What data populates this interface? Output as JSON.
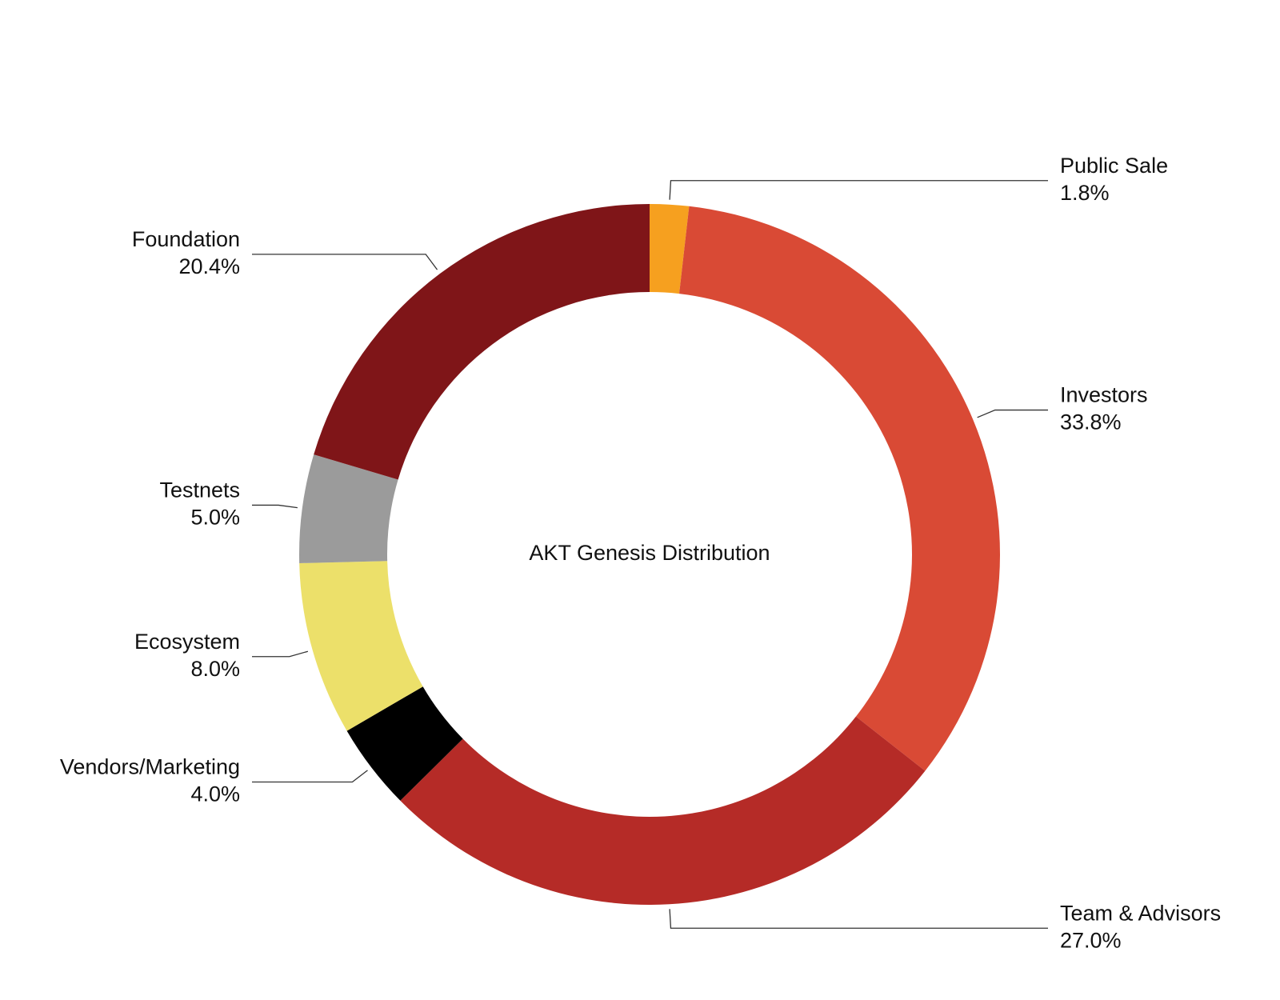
{
  "chart_data": {
    "type": "pie",
    "title": "AKT Genesis Distribution",
    "donut": true,
    "categories": [
      "Public Sale",
      "Investors",
      "Team & Advisors",
      "Vendors/Marketing",
      "Ecosystem",
      "Testnets",
      "Foundation"
    ],
    "values": [
      1.8,
      33.8,
      27.0,
      4.0,
      8.0,
      5.0,
      20.4
    ],
    "value_labels": [
      "1.8%",
      "33.8%",
      "27.0%",
      "4.0%",
      "8.0%",
      "5.0%",
      "20.4%"
    ],
    "colors": [
      "#f6a01f",
      "#d94a35",
      "#b52b27",
      "#000000",
      "#ece06a",
      "#9b9b9b",
      "#7f1518"
    ]
  }
}
